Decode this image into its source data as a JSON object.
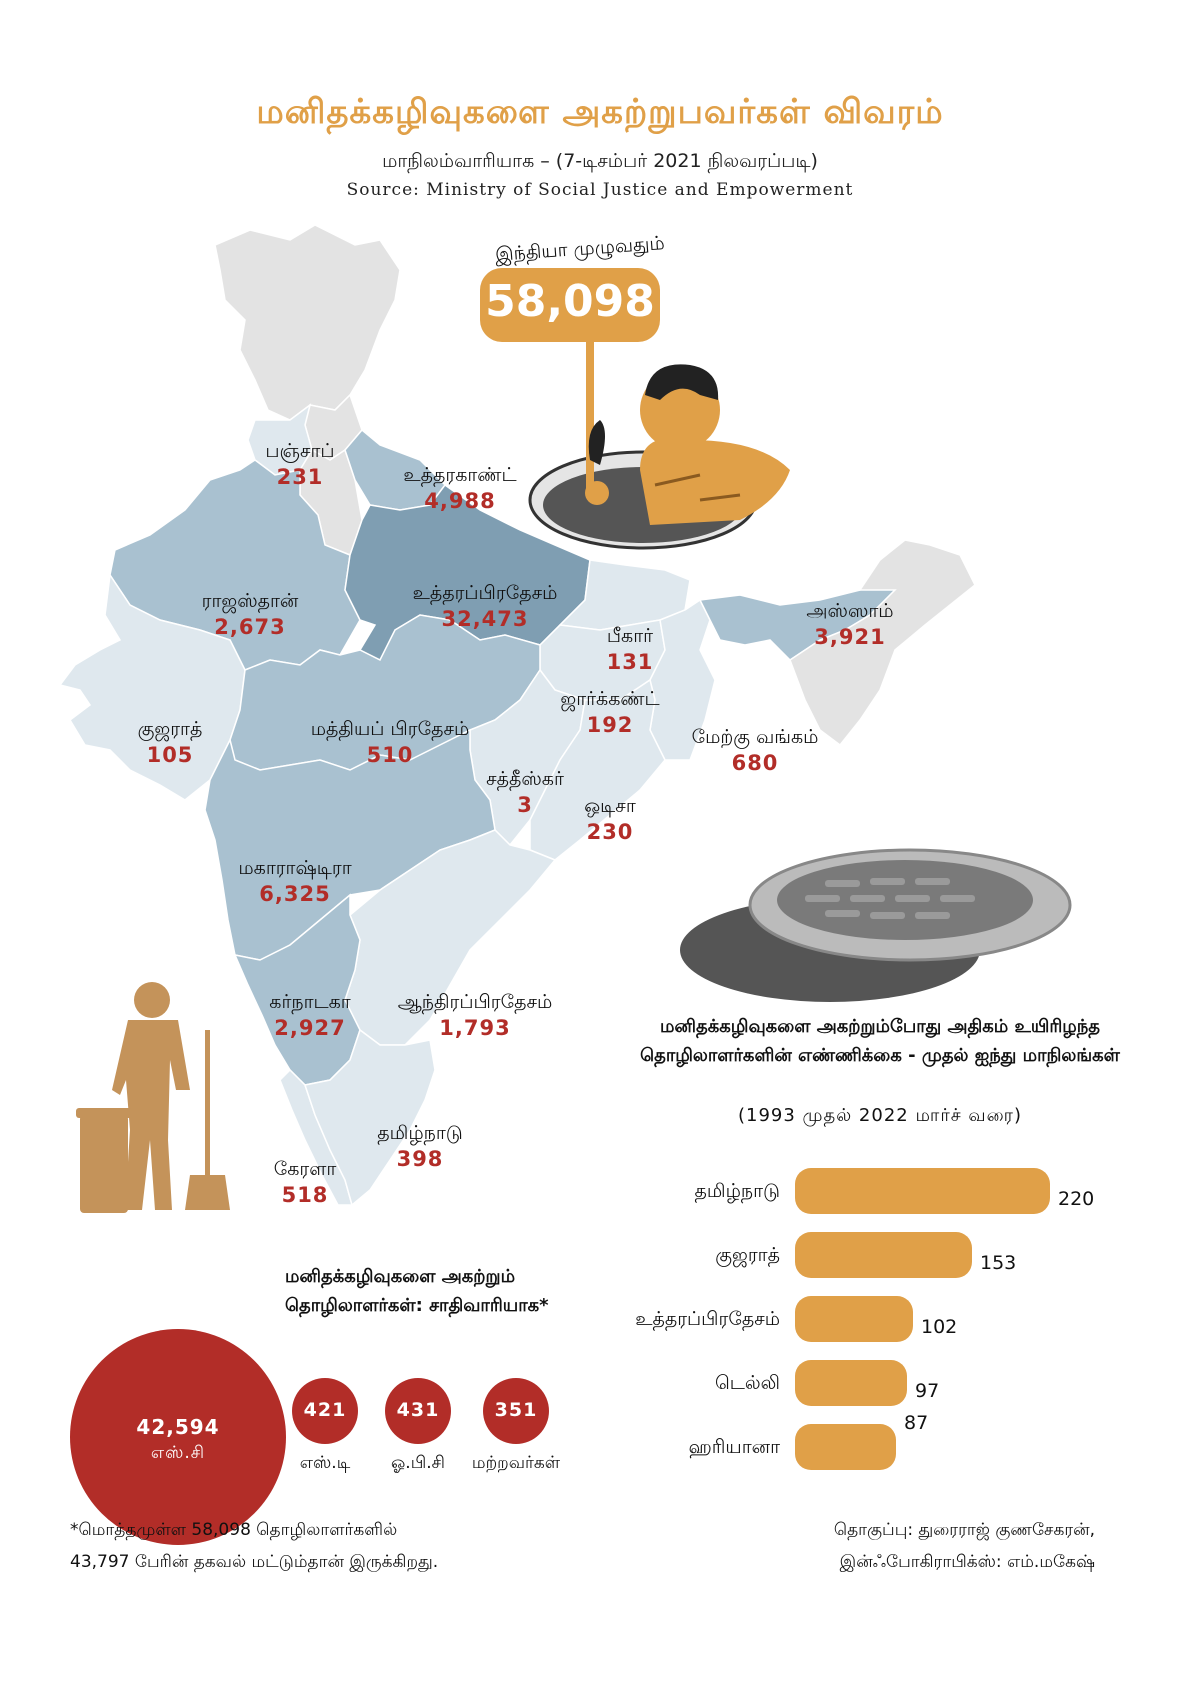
{
  "header": {
    "title": "மனிதக்கழிவுகளை அகற்றுபவர்கள் விவரம்",
    "subtitle": "மாநிலம்வாரியாக – (7-டிசம்பர் 2021 நிலவரப்படி)",
    "source": "Source: Ministry of Social Justice and Empowerment"
  },
  "sign": {
    "label": "இந்தியா முழுவதும்",
    "value": "58,098"
  },
  "chart_data": [
    {
      "type": "choropleth-map",
      "title": "மனிதக்கழிவுகளை அகற்றுபவர்கள் விவரம்",
      "regions": [
        {
          "name": "பஞ்சாப்",
          "value": "231"
        },
        {
          "name": "உத்தரகாண்ட்",
          "value": "4,988"
        },
        {
          "name": "ராஜஸ்தான்",
          "value": "2,673"
        },
        {
          "name": "உத்தரப்பிரதேசம்",
          "value": "32,473"
        },
        {
          "name": "பீகார்",
          "value": "131"
        },
        {
          "name": "அஸ்ஸாம்",
          "value": "3,921"
        },
        {
          "name": "ஜார்க்கண்ட்",
          "value": "192"
        },
        {
          "name": "குஜராத்",
          "value": "105"
        },
        {
          "name": "மத்தியப் பிரதேசம்",
          "value": "510"
        },
        {
          "name": "மேற்கு வங்கம்",
          "value": "680"
        },
        {
          "name": "சத்தீஸ்கர்",
          "value": "3"
        },
        {
          "name": "ஒடிசா",
          "value": "230"
        },
        {
          "name": "மகாராஷ்டிரா",
          "value": "6,325"
        },
        {
          "name": "கர்நாடகா",
          "value": "2,927"
        },
        {
          "name": "ஆந்திரப்பிரதேசம்",
          "value": "1,793"
        },
        {
          "name": "தமிழ்நாடு",
          "value": "398"
        },
        {
          "name": "கேரளா",
          "value": "518"
        }
      ],
      "colors": {
        "light": "#dfe8ee",
        "mid": "#a9c1d0",
        "dark": "#7f9eb2",
        "none": "#e3e3e3"
      }
    },
    {
      "type": "bar",
      "orientation": "horizontal",
      "title": "மனிதக்கழிவுகளை அகற்றும்போது அதிகம் உயிரிழந்த தொழிலாளர்களின் எண்ணிக்கை - முதல் ஐந்து மாநிலங்கள்",
      "subtitle": "(1993 முதல் 2022 மார்ச் வரை)",
      "categories": [
        "தமிழ்நாடு",
        "குஜராத்",
        "உத்தரப்பிரதேசம்",
        "டெல்லி",
        "ஹரியானா"
      ],
      "values": [
        220,
        153,
        102,
        97,
        87
      ],
      "color": "#e0a048"
    },
    {
      "type": "bubble",
      "title": "மனிதக்கழிவுகளை அகற்றும் தொழிலாளர்கள்: சாதிவாரியாக*",
      "categories": [
        "எஸ்.சி",
        "எஸ்.டி",
        "ஓ.பி.சி",
        "மற்றவர்கள்"
      ],
      "values": [
        42594,
        421,
        431,
        351
      ],
      "value_labels": [
        "42,594",
        "421",
        "431",
        "351"
      ],
      "color": "#b22d28"
    }
  ],
  "footnote": {
    "line1": "*மொத்தமுள்ள 58,098 தொழிலாளர்களில்",
    "line2": "43,797 பேரின் தகவல் மட்டும்தான் இருக்கிறது."
  },
  "credits": {
    "line1": "தொகுப்பு: துரைராஜ் குணசேகரன்,",
    "line2": "இன்ஃபோகிராபிக்ஸ்: எம்.மகேஷ்"
  },
  "icons": [
    "sewer-worker-icon",
    "manhole-cover-icon",
    "sanitation-worker-icon"
  ]
}
